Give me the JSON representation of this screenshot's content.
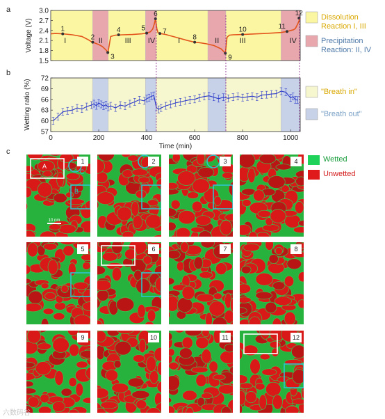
{
  "panels": {
    "a": "a",
    "b": "b",
    "c": "c"
  },
  "chart_data": [
    {
      "type": "line",
      "panel": "a",
      "ylabel": "Voltage (V)",
      "ylim": [
        1.5,
        3.0
      ],
      "yticks": [
        "1.5",
        "1.8",
        "2.1",
        "2.4",
        "2.7",
        "3.0"
      ],
      "xlim": [
        0,
        1040
      ],
      "color": "#e3541b",
      "series": [
        {
          "x": [
            0,
            20,
            50,
            90,
            130,
            155,
            168,
            175,
            185,
            200,
            215,
            230,
            238,
            242,
            250,
            270,
            300,
            340,
            380,
            400,
            415,
            425,
            432,
            437,
            442,
            447,
            455,
            480,
            520,
            570,
            600,
            625,
            650,
            680,
            710,
            728,
            735,
            745,
            760,
            800,
            860,
            920,
            960,
            985,
            1000,
            1012,
            1020,
            1030,
            1040
          ],
          "y": [
            2.3,
            2.31,
            2.3,
            2.27,
            2.22,
            2.13,
            2.07,
            2.05,
            2.02,
            1.98,
            1.92,
            1.82,
            1.74,
            1.88,
            2.22,
            2.26,
            2.27,
            2.28,
            2.3,
            2.32,
            2.36,
            2.44,
            2.6,
            2.75,
            2.46,
            2.34,
            2.31,
            2.28,
            2.2,
            2.1,
            2.05,
            2.03,
            2.0,
            1.95,
            1.85,
            1.72,
            2.2,
            2.26,
            2.27,
            2.28,
            2.3,
            2.32,
            2.34,
            2.37,
            2.4,
            2.42,
            2.46,
            2.6,
            2.77
          ]
        }
      ],
      "points": [
        {
          "label": "1",
          "x": 50,
          "y": 2.3
        },
        {
          "label": "2",
          "x": 175,
          "y": 2.05
        },
        {
          "label": "3",
          "x": 238,
          "y": 1.74
        },
        {
          "label": "4",
          "x": 283,
          "y": 2.27
        },
        {
          "label": "5",
          "x": 400,
          "y": 2.32
        },
        {
          "label": "6",
          "x": 437,
          "y": 2.75
        },
        {
          "label": "7",
          "x": 455,
          "y": 2.31
        },
        {
          "label": "8",
          "x": 600,
          "y": 2.05
        },
        {
          "label": "9",
          "x": 728,
          "y": 1.72
        },
        {
          "label": "10",
          "x": 800,
          "y": 2.28
        },
        {
          "label": "11",
          "x": 985,
          "y": 2.37
        },
        {
          "label": "12",
          "x": 1035,
          "y": 2.77
        }
      ],
      "region_labels": [
        {
          "label": "I",
          "x": 60
        },
        {
          "label": "II",
          "x": 208
        },
        {
          "label": "III",
          "x": 322
        },
        {
          "label": "IV",
          "x": 420
        },
        {
          "label": "I",
          "x": 535
        },
        {
          "label": "II",
          "x": 693
        },
        {
          "label": "III",
          "x": 800
        },
        {
          "label": "IV",
          "x": 1010
        }
      ],
      "regions": [
        {
          "type": "dissolution",
          "from": 0,
          "to": 175
        },
        {
          "type": "precipitation",
          "from": 175,
          "to": 240
        },
        {
          "type": "dissolution",
          "from": 240,
          "to": 395
        },
        {
          "type": "precipitation",
          "from": 395,
          "to": 440
        },
        {
          "type": "dissolution",
          "from": 440,
          "to": 655
        },
        {
          "type": "precipitation",
          "from": 655,
          "to": 730
        },
        {
          "type": "dissolution",
          "from": 730,
          "to": 960
        },
        {
          "type": "precipitation",
          "from": 960,
          "to": 1040
        }
      ],
      "legend": [
        {
          "text": "Dissolution\nReaction I, III",
          "color": "#fbf6a2",
          "text_color": "#d9a800"
        },
        {
          "text": "Precipitation\nReaction: II, IV",
          "color": "#e8a7ad",
          "text_color": "#4e79a8"
        }
      ]
    },
    {
      "type": "line",
      "panel": "b",
      "xlabel": "Time (min)",
      "ylabel": "Wetting ratio (%)",
      "ylim": [
        57,
        72
      ],
      "yticks": [
        "57",
        "60",
        "63",
        "66",
        "69",
        "72"
      ],
      "xlim": [
        0,
        1040
      ],
      "xticks": [
        "0",
        "200",
        "400",
        "600",
        "800",
        "1000"
      ],
      "color": "#2b39c9",
      "series": [
        {
          "x": [
            10,
            30,
            50,
            70,
            90,
            110,
            130,
            150,
            170,
            180,
            190,
            200,
            210,
            220,
            230,
            240,
            250,
            270,
            290,
            310,
            330,
            350,
            370,
            390,
            400,
            410,
            420,
            430,
            440,
            450,
            460,
            480,
            500,
            520,
            540,
            560,
            580,
            600,
            620,
            640,
            660,
            680,
            700,
            720,
            740,
            760,
            780,
            800,
            820,
            840,
            860,
            880,
            900,
            920,
            940,
            960,
            980,
            1000,
            1010,
            1020,
            1030
          ],
          "y": [
            60.0,
            61.2,
            62.5,
            62.8,
            63.0,
            63.6,
            63.3,
            64.0,
            64.4,
            64.8,
            64.2,
            65.0,
            64.6,
            64.1,
            64.5,
            63.8,
            64.2,
            63.6,
            64.4,
            64.1,
            64.8,
            65.3,
            65.9,
            65.6,
            66.2,
            66.5,
            66.9,
            67.1,
            63.8,
            63.2,
            63.6,
            64.2,
            64.6,
            65.0,
            65.3,
            65.6,
            65.9,
            66.0,
            66.5,
            66.8,
            67.0,
            66.6,
            66.2,
            66.6,
            66.3,
            66.6,
            66.8,
            66.5,
            66.7,
            66.9,
            66.6,
            67.2,
            67.3,
            67.5,
            67.6,
            68.3,
            68.0,
            66.4,
            66.8,
            65.9,
            65.8
          ]
        }
      ],
      "regions": [
        {
          "type": "breath_in",
          "from": 0,
          "to": 175
        },
        {
          "type": "breath_out",
          "from": 175,
          "to": 240
        },
        {
          "type": "breath_in",
          "from": 240,
          "to": 395
        },
        {
          "type": "breath_out",
          "from": 395,
          "to": 440
        },
        {
          "type": "breath_in",
          "from": 440,
          "to": 655
        },
        {
          "type": "breath_out",
          "from": 655,
          "to": 730
        },
        {
          "type": "breath_in",
          "from": 730,
          "to": 960
        },
        {
          "type": "breath_out",
          "from": 960,
          "to": 1040
        }
      ],
      "legend": [
        {
          "text": "\"Breath in\"",
          "color": "#f6f6cf",
          "text_color": "#d9a800"
        },
        {
          "text": "\"Breath out\"",
          "color": "#c7d2e8",
          "text_color": "#7ba1c7"
        }
      ]
    }
  ],
  "micrographs": {
    "tiles": [
      "1",
      "2",
      "3",
      "4",
      "5",
      "6",
      "7",
      "8",
      "9",
      "10",
      "11",
      "12"
    ],
    "region_labels": {
      "A": "A",
      "B": "B",
      "C": "C"
    },
    "scale_bar": "10 nm",
    "legend": [
      {
        "text": "Wetted",
        "color": "#1fd25a",
        "text_color": "#1a9e3d"
      },
      {
        "text": "Unwetted",
        "color": "#e01a1a",
        "text_color": "#d41c1c"
      }
    ]
  },
  "watermark": "六数码谷"
}
